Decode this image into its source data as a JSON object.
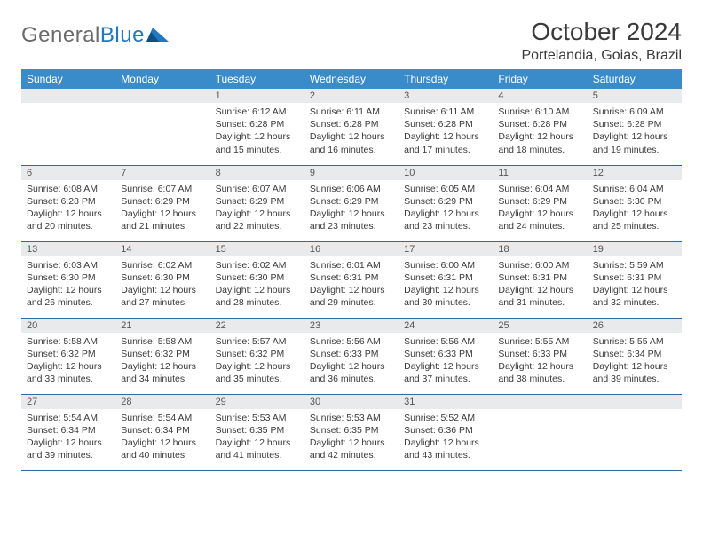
{
  "logo": {
    "word1": "General",
    "word2": "Blue"
  },
  "title": "October 2024",
  "location": "Portelandia, Goias, Brazil",
  "colors": {
    "header_bg": "#3a8bc9",
    "header_text": "#ffffff",
    "daynum_bg": "#e9eaeb",
    "row_border": "#2a6ea8",
    "logo_gray": "#6a6a6a",
    "logo_blue": "#2178bd",
    "text": "#3a3a3a"
  },
  "day_headers": [
    "Sunday",
    "Monday",
    "Tuesday",
    "Wednesday",
    "Thursday",
    "Friday",
    "Saturday"
  ],
  "weeks": [
    [
      null,
      null,
      {
        "n": "1",
        "sunrise": "6:12 AM",
        "sunset": "6:28 PM",
        "daylight": "12 hours and 15 minutes."
      },
      {
        "n": "2",
        "sunrise": "6:11 AM",
        "sunset": "6:28 PM",
        "daylight": "12 hours and 16 minutes."
      },
      {
        "n": "3",
        "sunrise": "6:11 AM",
        "sunset": "6:28 PM",
        "daylight": "12 hours and 17 minutes."
      },
      {
        "n": "4",
        "sunrise": "6:10 AM",
        "sunset": "6:28 PM",
        "daylight": "12 hours and 18 minutes."
      },
      {
        "n": "5",
        "sunrise": "6:09 AM",
        "sunset": "6:28 PM",
        "daylight": "12 hours and 19 minutes."
      }
    ],
    [
      {
        "n": "6",
        "sunrise": "6:08 AM",
        "sunset": "6:28 PM",
        "daylight": "12 hours and 20 minutes."
      },
      {
        "n": "7",
        "sunrise": "6:07 AM",
        "sunset": "6:29 PM",
        "daylight": "12 hours and 21 minutes."
      },
      {
        "n": "8",
        "sunrise": "6:07 AM",
        "sunset": "6:29 PM",
        "daylight": "12 hours and 22 minutes."
      },
      {
        "n": "9",
        "sunrise": "6:06 AM",
        "sunset": "6:29 PM",
        "daylight": "12 hours and 23 minutes."
      },
      {
        "n": "10",
        "sunrise": "6:05 AM",
        "sunset": "6:29 PM",
        "daylight": "12 hours and 23 minutes."
      },
      {
        "n": "11",
        "sunrise": "6:04 AM",
        "sunset": "6:29 PM",
        "daylight": "12 hours and 24 minutes."
      },
      {
        "n": "12",
        "sunrise": "6:04 AM",
        "sunset": "6:30 PM",
        "daylight": "12 hours and 25 minutes."
      }
    ],
    [
      {
        "n": "13",
        "sunrise": "6:03 AM",
        "sunset": "6:30 PM",
        "daylight": "12 hours and 26 minutes."
      },
      {
        "n": "14",
        "sunrise": "6:02 AM",
        "sunset": "6:30 PM",
        "daylight": "12 hours and 27 minutes."
      },
      {
        "n": "15",
        "sunrise": "6:02 AM",
        "sunset": "6:30 PM",
        "daylight": "12 hours and 28 minutes."
      },
      {
        "n": "16",
        "sunrise": "6:01 AM",
        "sunset": "6:31 PM",
        "daylight": "12 hours and 29 minutes."
      },
      {
        "n": "17",
        "sunrise": "6:00 AM",
        "sunset": "6:31 PM",
        "daylight": "12 hours and 30 minutes."
      },
      {
        "n": "18",
        "sunrise": "6:00 AM",
        "sunset": "6:31 PM",
        "daylight": "12 hours and 31 minutes."
      },
      {
        "n": "19",
        "sunrise": "5:59 AM",
        "sunset": "6:31 PM",
        "daylight": "12 hours and 32 minutes."
      }
    ],
    [
      {
        "n": "20",
        "sunrise": "5:58 AM",
        "sunset": "6:32 PM",
        "daylight": "12 hours and 33 minutes."
      },
      {
        "n": "21",
        "sunrise": "5:58 AM",
        "sunset": "6:32 PM",
        "daylight": "12 hours and 34 minutes."
      },
      {
        "n": "22",
        "sunrise": "5:57 AM",
        "sunset": "6:32 PM",
        "daylight": "12 hours and 35 minutes."
      },
      {
        "n": "23",
        "sunrise": "5:56 AM",
        "sunset": "6:33 PM",
        "daylight": "12 hours and 36 minutes."
      },
      {
        "n": "24",
        "sunrise": "5:56 AM",
        "sunset": "6:33 PM",
        "daylight": "12 hours and 37 minutes."
      },
      {
        "n": "25",
        "sunrise": "5:55 AM",
        "sunset": "6:33 PM",
        "daylight": "12 hours and 38 minutes."
      },
      {
        "n": "26",
        "sunrise": "5:55 AM",
        "sunset": "6:34 PM",
        "daylight": "12 hours and 39 minutes."
      }
    ],
    [
      {
        "n": "27",
        "sunrise": "5:54 AM",
        "sunset": "6:34 PM",
        "daylight": "12 hours and 39 minutes."
      },
      {
        "n": "28",
        "sunrise": "5:54 AM",
        "sunset": "6:34 PM",
        "daylight": "12 hours and 40 minutes."
      },
      {
        "n": "29",
        "sunrise": "5:53 AM",
        "sunset": "6:35 PM",
        "daylight": "12 hours and 41 minutes."
      },
      {
        "n": "30",
        "sunrise": "5:53 AM",
        "sunset": "6:35 PM",
        "daylight": "12 hours and 42 minutes."
      },
      {
        "n": "31",
        "sunrise": "5:52 AM",
        "sunset": "6:36 PM",
        "daylight": "12 hours and 43 minutes."
      },
      null,
      null
    ]
  ],
  "labels": {
    "sunrise": "Sunrise: ",
    "sunset": "Sunset: ",
    "daylight": "Daylight: "
  }
}
